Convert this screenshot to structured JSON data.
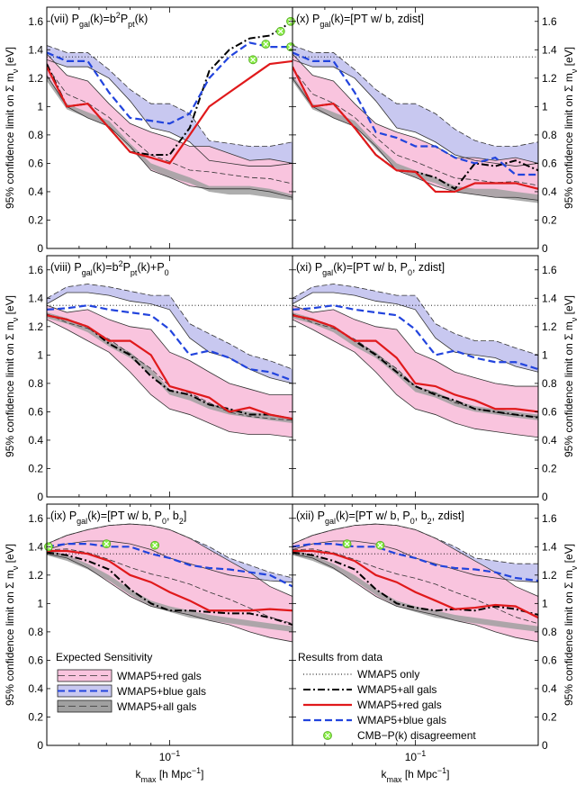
{
  "chart_data": {
    "type": "line",
    "shared": {
      "xlim": [
        0.05,
        0.2
      ],
      "x_scale": "log",
      "ylim": [
        0,
        1.7
      ],
      "yticks": [
        0,
        0.2,
        0.4,
        0.6,
        0.8,
        1,
        1.2,
        1.4,
        1.6
      ],
      "ytick_labels": [
        "0",
        "0.2",
        "0.4",
        "0.6",
        "0.8",
        "1",
        "1.2",
        "1.4",
        "1.6"
      ],
      "xtick_label": "10",
      "xtick_exponent": "−1",
      "xlabel_main": "k",
      "xlabel_sub": "max",
      "xlabel_unit": " [h Mpc",
      "xlabel_unit_exp": "−1",
      "xlabel_close": "]",
      "ylabel_main": "95% confidence limit on Σ m",
      "ylabel_sub": "ν",
      "ylabel_unit": " [eV]",
      "wmap5_only": 1.35,
      "x": [
        0.05,
        0.056,
        0.063,
        0.071,
        0.08,
        0.09,
        0.1,
        0.112,
        0.125,
        0.14,
        0.157,
        0.176,
        0.2
      ]
    },
    "panels": [
      {
        "title_parts": [
          "(vii) P",
          "gal",
          "(k)=b",
          "2",
          "P",
          "pt",
          "(k)"
        ],
        "red_band": {
          "upper": [
            1.37,
            1.22,
            1.18,
            1.02,
            0.88,
            0.82,
            0.78,
            0.72,
            0.72,
            0.67,
            0.62,
            0.63,
            0.6
          ],
          "lower": [
            1.22,
            1.0,
            0.92,
            0.86,
            0.72,
            0.55,
            0.5,
            0.44,
            0.42,
            0.42,
            0.42,
            0.4,
            0.36
          ]
        },
        "blue_band": {
          "upper": [
            1.43,
            1.38,
            1.38,
            1.26,
            1.12,
            1.02,
            1.02,
            0.95,
            0.76,
            0.74,
            0.72,
            0.72,
            0.75
          ],
          "lower": [
            1.33,
            1.28,
            1.28,
            1.2,
            1.04,
            0.85,
            0.82,
            0.75,
            0.62,
            0.6,
            0.58,
            0.58,
            0.6
          ]
        },
        "all_band": {
          "upper": [
            1.22,
            1.02,
            0.96,
            0.9,
            0.74,
            0.6,
            0.55,
            0.5,
            0.44,
            0.44,
            0.44,
            0.42,
            0.38
          ],
          "lower": [
            1.18,
            0.98,
            0.92,
            0.86,
            0.7,
            0.56,
            0.5,
            0.46,
            0.4,
            0.38,
            0.38,
            0.36,
            0.34
          ]
        },
        "all_gals": [
          1.3,
          1.0,
          1.02,
          0.85,
          0.68,
          0.66,
          0.66,
          0.85,
          1.25,
          1.4,
          1.48,
          1.5,
          1.6
        ],
        "red_gals": [
          1.28,
          1.0,
          1.02,
          0.85,
          0.68,
          0.64,
          0.6,
          0.8,
          1.0,
          1.1,
          1.2,
          1.3,
          1.32
        ],
        "blue_gals": [
          1.38,
          1.32,
          1.32,
          1.1,
          0.92,
          0.9,
          0.88,
          0.95,
          1.2,
          1.35,
          1.45,
          1.42,
          1.42
        ],
        "disagreement": [
          {
            "x": 0.16,
            "y": 1.33
          },
          {
            "x": 0.172,
            "y": 1.44
          },
          {
            "x": 0.187,
            "y": 1.53
          },
          {
            "x": 0.198,
            "y": 1.6
          },
          {
            "x": 0.198,
            "y": 1.42
          }
        ]
      },
      {
        "title_parts": [
          "(x) P",
          "gal",
          "(k)=[PT w/ b, zdist]"
        ],
        "red_band": {
          "upper": [
            1.37,
            1.22,
            1.18,
            1.02,
            0.88,
            0.82,
            0.78,
            0.72,
            0.64,
            0.64,
            0.62,
            0.64,
            0.6
          ],
          "lower": [
            1.2,
            1.0,
            0.92,
            0.86,
            0.72,
            0.55,
            0.5,
            0.44,
            0.4,
            0.38,
            0.36,
            0.36,
            0.34
          ]
        },
        "blue_band": {
          "upper": [
            1.43,
            1.38,
            1.38,
            1.26,
            1.12,
            1.02,
            1.02,
            0.95,
            0.84,
            0.76,
            0.72,
            0.72,
            0.75
          ],
          "lower": [
            1.33,
            1.28,
            1.28,
            1.2,
            1.04,
            0.85,
            0.82,
            0.75,
            0.66,
            0.62,
            0.6,
            0.58,
            0.6
          ]
        },
        "all_band": {
          "upper": [
            1.22,
            1.02,
            0.96,
            0.9,
            0.74,
            0.6,
            0.55,
            0.5,
            0.44,
            0.42,
            0.42,
            0.4,
            0.38
          ],
          "lower": [
            1.18,
            0.98,
            0.92,
            0.86,
            0.7,
            0.56,
            0.5,
            0.46,
            0.4,
            0.38,
            0.36,
            0.34,
            0.32
          ]
        },
        "all_gals": [
          1.28,
          1.0,
          1.02,
          0.85,
          0.66,
          0.55,
          0.54,
          0.5,
          0.42,
          0.6,
          0.58,
          0.62,
          0.55
        ],
        "red_gals": [
          1.28,
          1.0,
          1.02,
          0.85,
          0.66,
          0.55,
          0.54,
          0.4,
          0.4,
          0.46,
          0.46,
          0.46,
          0.42
        ],
        "blue_gals": [
          1.38,
          1.32,
          1.32,
          1.1,
          0.82,
          0.78,
          0.72,
          0.72,
          0.64,
          0.6,
          0.64,
          0.52,
          0.52
        ],
        "disagreement": []
      },
      {
        "title_parts": [
          "(viii) P",
          "gal",
          "(k)=b",
          "2",
          "P",
          "pt",
          "(k)+P",
          "0"
        ],
        "red_band": {
          "upper": [
            1.35,
            1.3,
            1.32,
            1.25,
            1.2,
            1.18,
            1.02,
            0.96,
            0.88,
            0.8,
            0.76,
            0.72,
            0.72
          ],
          "lower": [
            1.25,
            1.18,
            1.1,
            1.02,
            0.88,
            0.72,
            0.62,
            0.58,
            0.52,
            0.46,
            0.44,
            0.44,
            0.42
          ]
        },
        "blue_band": {
          "upper": [
            1.4,
            1.48,
            1.5,
            1.48,
            1.45,
            1.42,
            1.42,
            1.22,
            1.15,
            1.08,
            1.0,
            0.96,
            0.9
          ],
          "lower": [
            1.36,
            1.44,
            1.44,
            1.42,
            1.38,
            1.36,
            1.32,
            1.12,
            1.02,
            0.98,
            0.9,
            0.84,
            0.8
          ]
        },
        "all_band": {
          "upper": [
            1.3,
            1.26,
            1.2,
            1.1,
            1.02,
            0.9,
            0.76,
            0.72,
            0.66,
            0.62,
            0.6,
            0.58,
            0.56
          ],
          "lower": [
            1.26,
            1.22,
            1.16,
            1.06,
            0.98,
            0.86,
            0.72,
            0.68,
            0.62,
            0.58,
            0.56,
            0.54,
            0.52
          ]
        },
        "all_gals": [
          1.28,
          1.25,
          1.2,
          1.08,
          1.0,
          0.85,
          0.75,
          0.72,
          0.65,
          0.62,
          0.58,
          0.58,
          0.55
        ],
        "red_gals": [
          1.28,
          1.25,
          1.2,
          1.1,
          1.1,
          1.0,
          0.78,
          0.74,
          0.7,
          0.6,
          0.63,
          0.58,
          0.55
        ],
        "blue_gals": [
          1.32,
          1.33,
          1.35,
          1.32,
          1.3,
          1.28,
          1.18,
          1.0,
          1.03,
          0.98,
          0.9,
          0.88,
          0.82
        ],
        "disagreement": []
      },
      {
        "title_parts": [
          "(xi) P",
          "gal",
          "(k)=[PT w/ b, P",
          "0",
          ", zdist]"
        ],
        "red_band": {
          "upper": [
            1.35,
            1.3,
            1.32,
            1.25,
            1.2,
            1.18,
            1.02,
            0.96,
            0.88,
            0.84,
            0.8,
            0.78,
            0.78
          ],
          "lower": [
            1.25,
            1.18,
            1.1,
            1.02,
            0.88,
            0.72,
            0.62,
            0.58,
            0.52,
            0.48,
            0.46,
            0.44,
            0.42
          ]
        },
        "blue_band": {
          "upper": [
            1.4,
            1.48,
            1.5,
            1.48,
            1.45,
            1.42,
            1.42,
            1.22,
            1.15,
            1.1,
            1.1,
            1.05,
            1.0
          ],
          "lower": [
            1.36,
            1.44,
            1.44,
            1.42,
            1.38,
            1.36,
            1.32,
            1.12,
            1.02,
            1.0,
            0.98,
            0.92,
            0.88
          ]
        },
        "all_band": {
          "upper": [
            1.3,
            1.26,
            1.2,
            1.1,
            1.02,
            0.9,
            0.78,
            0.74,
            0.68,
            0.64,
            0.62,
            0.6,
            0.58
          ],
          "lower": [
            1.26,
            1.22,
            1.16,
            1.06,
            0.98,
            0.86,
            0.74,
            0.7,
            0.64,
            0.6,
            0.58,
            0.56,
            0.54
          ]
        },
        "all_gals": [
          1.28,
          1.25,
          1.2,
          1.1,
          1.0,
          0.88,
          0.78,
          0.72,
          0.68,
          0.62,
          0.6,
          0.58,
          0.56
        ],
        "red_gals": [
          1.28,
          1.25,
          1.2,
          1.1,
          1.1,
          0.98,
          0.8,
          0.78,
          0.72,
          0.68,
          0.62,
          0.62,
          0.6
        ],
        "blue_gals": [
          1.32,
          1.33,
          1.35,
          1.32,
          1.3,
          1.28,
          1.18,
          1.0,
          1.03,
          0.98,
          0.95,
          0.95,
          0.9
        ],
        "disagreement": []
      },
      {
        "title_parts": [
          "(ix) P",
          "gal",
          "(k)=[PT w/ b, P",
          "0",
          ", b",
          "2",
          "]"
        ],
        "red_band": {
          "upper": [
            1.42,
            1.48,
            1.52,
            1.55,
            1.56,
            1.55,
            1.52,
            1.46,
            1.38,
            1.3,
            1.22,
            1.12,
            1.05
          ],
          "lower": [
            1.35,
            1.32,
            1.25,
            1.15,
            1.05,
            0.98,
            0.95,
            0.92,
            0.88,
            0.85,
            0.8,
            0.76,
            0.73
          ]
        },
        "blue_band": {
          "upper": [
            1.42,
            1.48,
            1.52,
            1.55,
            1.56,
            1.55,
            1.52,
            1.46,
            1.4,
            1.32,
            1.27,
            1.22,
            1.18
          ],
          "lower": [
            1.38,
            1.42,
            1.44,
            1.44,
            1.42,
            1.38,
            1.32,
            1.28,
            1.24,
            1.2,
            1.18,
            1.16,
            1.15
          ]
        },
        "all_band": {
          "upper": [
            1.38,
            1.34,
            1.28,
            1.2,
            1.1,
            1.02,
            0.98,
            0.95,
            0.92,
            0.9,
            0.88,
            0.86,
            0.84
          ],
          "lower": [
            1.34,
            1.3,
            1.24,
            1.16,
            1.06,
            0.98,
            0.94,
            0.9,
            0.88,
            0.86,
            0.84,
            0.82,
            0.8
          ]
        },
        "all_gals": [
          1.36,
          1.34,
          1.3,
          1.24,
          1.1,
          1.0,
          0.95,
          0.95,
          0.94,
          0.93,
          0.93,
          0.9,
          0.85
        ],
        "red_gals": [
          1.37,
          1.37,
          1.35,
          1.3,
          1.2,
          1.15,
          1.08,
          1.02,
          0.95,
          0.95,
          0.95,
          0.96,
          0.95
        ],
        "blue_gals": [
          1.4,
          1.42,
          1.42,
          1.4,
          1.4,
          1.35,
          1.32,
          1.27,
          1.25,
          1.24,
          1.22,
          1.2,
          1.12
        ],
        "disagreement": [
          {
            "x": 0.0505,
            "y": 1.4
          },
          {
            "x": 0.07,
            "y": 1.42
          },
          {
            "x": 0.092,
            "y": 1.41
          }
        ]
      },
      {
        "title_parts": [
          "(xii) P",
          "gal",
          "(k)=[PT w/ b, P",
          "0",
          ", b",
          "2",
          ", zdist]"
        ],
        "red_band": {
          "upper": [
            1.42,
            1.48,
            1.52,
            1.55,
            1.56,
            1.55,
            1.52,
            1.46,
            1.38,
            1.3,
            1.22,
            1.12,
            1.05
          ],
          "lower": [
            1.35,
            1.32,
            1.25,
            1.15,
            1.05,
            0.98,
            0.95,
            0.92,
            0.88,
            0.85,
            0.8,
            0.76,
            0.73
          ]
        },
        "blue_band": {
          "upper": [
            1.42,
            1.48,
            1.52,
            1.55,
            1.56,
            1.55,
            1.52,
            1.46,
            1.4,
            1.32,
            1.3,
            1.28,
            1.28
          ],
          "lower": [
            1.38,
            1.42,
            1.44,
            1.44,
            1.42,
            1.38,
            1.32,
            1.28,
            1.24,
            1.2,
            1.18,
            1.16,
            1.15
          ]
        },
        "all_band": {
          "upper": [
            1.38,
            1.34,
            1.28,
            1.2,
            1.1,
            1.02,
            0.98,
            0.95,
            0.92,
            0.9,
            0.88,
            0.86,
            0.84
          ],
          "lower": [
            1.34,
            1.3,
            1.24,
            1.16,
            1.06,
            0.98,
            0.94,
            0.9,
            0.88,
            0.86,
            0.84,
            0.82,
            0.8
          ]
        },
        "all_gals": [
          1.36,
          1.34,
          1.3,
          1.24,
          1.1,
          1.0,
          0.97,
          0.95,
          0.96,
          0.95,
          0.98,
          0.96,
          0.92
        ],
        "red_gals": [
          1.37,
          1.37,
          1.35,
          1.3,
          1.2,
          1.15,
          1.08,
          1.02,
          0.96,
          0.97,
          0.99,
          0.98,
          0.9
        ],
        "blue_gals": [
          1.4,
          1.42,
          1.42,
          1.4,
          1.4,
          1.35,
          1.32,
          1.27,
          1.25,
          1.24,
          1.22,
          1.18,
          1.16
        ],
        "disagreement": [
          {
            "x": 0.068,
            "y": 1.42
          },
          {
            "x": 0.082,
            "y": 1.41
          }
        ]
      }
    ],
    "legend_expected": {
      "title": "Expected Sensitivity",
      "items": [
        "WMAP5+red gals",
        "WMAP5+blue gals",
        "WMAP5+all gals"
      ]
    },
    "legend_results": {
      "title": "Results from data",
      "items": [
        "WMAP5 only",
        "WMAP5+all gals",
        "WMAP5+red gals",
        "WMAP5+blue gals",
        "CMB−P(k) disagreement"
      ]
    },
    "colors": {
      "red_fill": "#f9c4de",
      "blue_fill": "#c8c8f0",
      "all_fill": "#a0a0a0",
      "red_line": "#e0191b",
      "blue_line": "#2244dd",
      "all_line": "#000000",
      "disagree_fill": "#88ee44"
    }
  }
}
